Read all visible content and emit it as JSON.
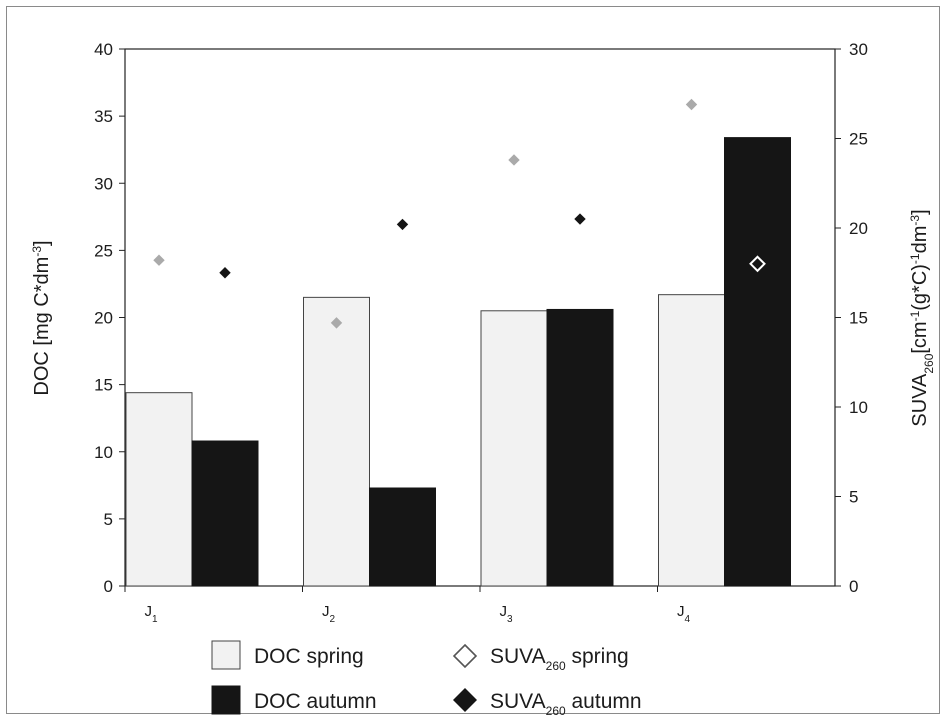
{
  "chart_data": {
    "type": "bar",
    "categories": [
      {
        "main": "J",
        "sub": "1"
      },
      {
        "main": "J",
        "sub": "2"
      },
      {
        "main": "J",
        "sub": "3"
      },
      {
        "main": "J",
        "sub": "4"
      }
    ],
    "ylabel_left": {
      "main": "DOC [mg C*dm",
      "sup": "-3",
      "end": "]"
    },
    "ylabel_right": {
      "p1": "SUVA",
      "sub": "260",
      "p2": "[cm",
      "sup1": "-1",
      "p3": "(g*C)",
      "sup2": "-1",
      "p4": "dm",
      "sup3": "-3",
      "p5": "]"
    },
    "ylim_left": [
      0,
      40
    ],
    "yticks_left": [
      "0",
      "5",
      "10",
      "15",
      "20",
      "25",
      "30",
      "35",
      "40"
    ],
    "ylim_right": [
      0,
      30
    ],
    "yticks_right": [
      "0",
      "5",
      "10",
      "15",
      "20",
      "25",
      "30"
    ],
    "grid": false,
    "legend_position": "bottom",
    "bar_series": [
      {
        "name": "DOC spring",
        "values": [
          14.4,
          21.5,
          20.5,
          21.7
        ],
        "color": "#f2f2f2",
        "axis": "left"
      },
      {
        "name": "DOC autumn",
        "values": [
          10.8,
          7.3,
          20.6,
          33.4
        ],
        "color": "#151515",
        "axis": "left"
      }
    ],
    "marker_series": [
      {
        "legend_main": "SUVA",
        "legend_sub": "260",
        "legend_end": " spring",
        "values": [
          18.2,
          14.7,
          23.8,
          26.9
        ],
        "color": "#aaaaaa",
        "axis": "right"
      },
      {
        "legend_main": "SUVA",
        "legend_sub": "260",
        "legend_end": " autumn",
        "values": [
          17.5,
          20.2,
          20.5,
          18.0
        ],
        "color": "#151515",
        "axis": "right"
      }
    ]
  }
}
